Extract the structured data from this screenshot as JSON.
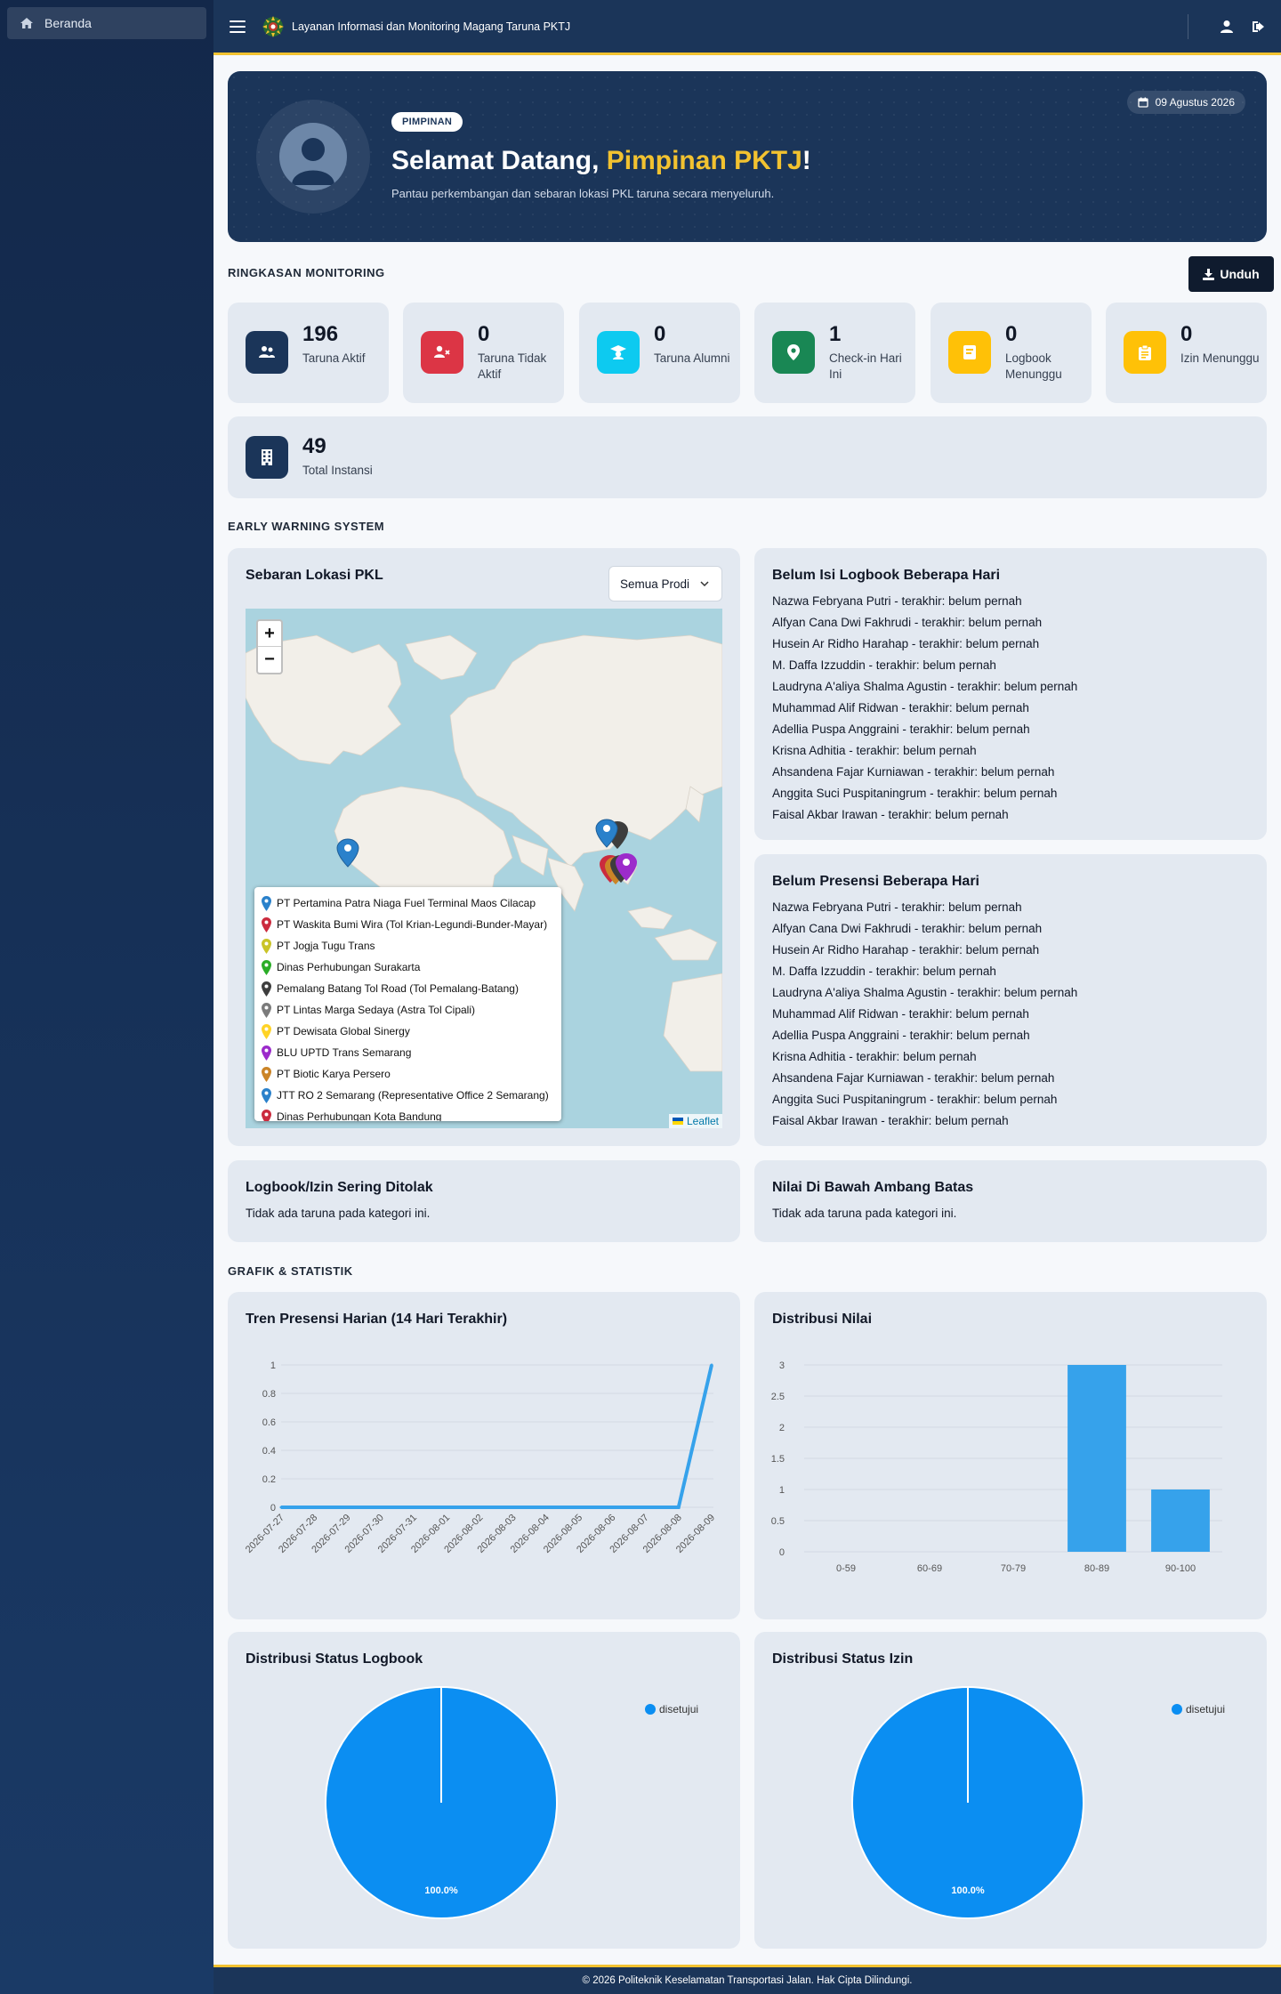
{
  "sidebar": {
    "items": [
      {
        "label": "Beranda",
        "icon": "home-icon"
      }
    ]
  },
  "topbar": {
    "title": "Layanan Informasi dan Monitoring Magang Taruna PKTJ"
  },
  "hero": {
    "role": "PIMPINAN",
    "welcome_prefix": "Selamat Datang, ",
    "welcome_name": "Pimpinan PKTJ",
    "welcome_suffix": "!",
    "subtitle": "Pantau perkembangan dan sebaran lokasi PKL taruna secara menyeluruh.",
    "date": "09 Agustus 2026"
  },
  "sections": {
    "monitoring": "RINGKASAN MONITORING",
    "ews": "EARLY WARNING SYSTEM",
    "charts": "GRAFIK & STATISTIK"
  },
  "download_label": "Unduh",
  "stats": [
    {
      "value": "196",
      "label": "Taruna Aktif",
      "icon": "users-icon",
      "color": "#1b3559"
    },
    {
      "value": "0",
      "label": "Taruna Tidak Aktif",
      "icon": "user-x-icon",
      "color": "#dc3545"
    },
    {
      "value": "0",
      "label": "Taruna Alumni",
      "icon": "graduation-icon",
      "color": "#0dcaf0"
    },
    {
      "value": "1",
      "label": "Check-in Hari Ini",
      "icon": "map-marker-icon",
      "color": "#198754"
    },
    {
      "value": "0",
      "label": "Logbook Menunggu",
      "icon": "book-icon",
      "color": "#ffc107"
    },
    {
      "value": "0",
      "label": "Izin Menunggu",
      "icon": "clipboard-icon",
      "color": "#ffc107"
    }
  ],
  "stat_instansi": {
    "value": "49",
    "label": "Total Instansi",
    "icon": "building-icon",
    "color": "#1b3559"
  },
  "map_panel": {
    "title": "Sebaran Lokasi PKL",
    "filter_value": "Semua Prodi",
    "zoom_in": "+",
    "zoom_out": "−",
    "attribution": "Leaflet",
    "legend": [
      {
        "name": "PT Pertamina Patra Niaga Fuel Terminal Maos Cilacap",
        "color": "#2a81cb"
      },
      {
        "name": "PT Waskita Bumi Wira (Tol Krian-Legundi-Bunder-Mayar)",
        "color": "#cb2b3e"
      },
      {
        "name": "PT Jogja Tugu Trans",
        "color": "#cac428"
      },
      {
        "name": "Dinas Perhubungan Surakarta",
        "color": "#2aad27"
      },
      {
        "name": "Pemalang Batang Tol Road (Tol Pemalang-Batang)",
        "color": "#3d3d3d"
      },
      {
        "name": "PT Lintas Marga Sedaya (Astra Tol Cipali)",
        "color": "#7b7b7b"
      },
      {
        "name": "PT Dewisata Global Sinergy",
        "color": "#ffd326"
      },
      {
        "name": "BLU UPTD Trans Semarang",
        "color": "#9c2bcb"
      },
      {
        "name": "PT Biotic Karya Persero",
        "color": "#cb8427"
      },
      {
        "name": "JTT RO 2 Semarang (Representative Office 2 Semarang)",
        "color": "#2a81cb"
      },
      {
        "name": "Dinas Perhubungan Kota Bandung",
        "color": "#cb2b3e"
      }
    ]
  },
  "logbook_panel": {
    "title": "Belum Isi Logbook Beberapa Hari",
    "items": [
      "Nazwa Febryana Putri - terakhir: belum pernah",
      "Alfyan Cana Dwi Fakhrudi - terakhir: belum pernah",
      "Husein Ar Ridho Harahap - terakhir: belum pernah",
      "M. Daffa Izzuddin - terakhir: belum pernah",
      "Laudryna A'aliya Shalma Agustin - terakhir: belum pernah",
      "Muhammad Alif Ridwan - terakhir: belum pernah",
      "Adellia Puspa Anggraini - terakhir: belum pernah",
      "Krisna Adhitia - terakhir: belum pernah",
      "Ahsandena Fajar Kurniawan - terakhir: belum pernah",
      "Anggita Suci Puspitaningrum - terakhir: belum pernah",
      "Faisal Akbar Irawan - terakhir: belum pernah"
    ]
  },
  "presensi_panel": {
    "title": "Belum Presensi Beberapa Hari",
    "items": [
      "Nazwa Febryana Putri - terakhir: belum pernah",
      "Alfyan Cana Dwi Fakhrudi - terakhir: belum pernah",
      "Husein Ar Ridho Harahap - terakhir: belum pernah",
      "M. Daffa Izzuddin - terakhir: belum pernah",
      "Laudryna A'aliya Shalma Agustin - terakhir: belum pernah",
      "Muhammad Alif Ridwan - terakhir: belum pernah",
      "Adellia Puspa Anggraini - terakhir: belum pernah",
      "Krisna Adhitia - terakhir: belum pernah",
      "Ahsandena Fajar Kurniawan - terakhir: belum pernah",
      "Anggita Suci Puspitaningrum - terakhir: belum pernah",
      "Faisal Akbar Irawan - terakhir: belum pernah"
    ]
  },
  "ditolak_panel": {
    "title": "Logbook/Izin Sering Ditolak",
    "empty": "Tidak ada taruna pada kategori ini."
  },
  "ambang_panel": {
    "title": "Nilai Di Bawah Ambang Batas",
    "empty": "Tidak ada taruna pada kategori ini."
  },
  "chart_titles": {
    "presensi": "Tren Presensi Harian (14 Hari Terakhir)",
    "nilai": "Distribusi Nilai",
    "logbook": "Distribusi Status Logbook",
    "izin": "Distribusi Status Izin"
  },
  "chart_data": [
    {
      "type": "line",
      "title": "Tren Presensi Harian (14 Hari Terakhir)",
      "x": [
        "2026-07-27",
        "2026-07-28",
        "2026-07-29",
        "2026-07-30",
        "2026-07-31",
        "2026-08-01",
        "2026-08-02",
        "2026-08-03",
        "2026-08-04",
        "2026-08-05",
        "2026-08-06",
        "2026-08-07",
        "2026-08-08",
        "2026-08-09"
      ],
      "series": [
        {
          "values": [
            0,
            0,
            0,
            0,
            0,
            0,
            0,
            0,
            0,
            0,
            0,
            0,
            0,
            1
          ]
        }
      ],
      "ylim": [
        0,
        1
      ],
      "yticks": [
        "0",
        "0.2",
        "0.4",
        "0.6",
        "0.8",
        "1"
      ],
      "color": "#36a2eb",
      "grid": true
    },
    {
      "type": "bar",
      "title": "Distribusi Nilai",
      "categories": [
        "0-59",
        "60-69",
        "70-79",
        "80-89",
        "90-100"
      ],
      "values": [
        0,
        0,
        0,
        3,
        1
      ],
      "ylim": [
        0,
        3
      ],
      "yticks": [
        "0",
        "0.5",
        "1",
        "1.5",
        "2",
        "2.5",
        "3"
      ],
      "color": "#36a2eb",
      "grid": true
    },
    {
      "type": "pie",
      "title": "Distribusi Status Logbook",
      "categories": [
        "disetujui"
      ],
      "values": [
        100
      ],
      "data_labels": [
        "100.0%"
      ],
      "legend": "top-right",
      "color": "#0b8ef2"
    },
    {
      "type": "pie",
      "title": "Distribusi Status Izin",
      "categories": [
        "disetujui"
      ],
      "values": [
        100
      ],
      "data_labels": [
        "100.0%"
      ],
      "legend": "top-right",
      "color": "#0b8ef2"
    }
  ],
  "footer": "© 2026 Politeknik Keselamatan Transportasi Jalan. Hak Cipta Dilindungi."
}
